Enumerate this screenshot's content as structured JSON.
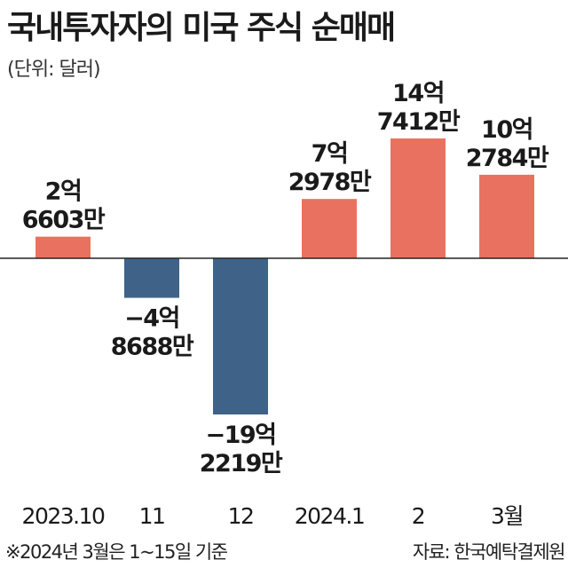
{
  "title": "국내투자자의 미국 주식 순매매",
  "unit_note": "(단위: 달러)",
  "footnote": "※2024년 3월은 1~15일 기준",
  "source": "자료: 한국예탁결제원",
  "colors": {
    "positive": "#e8725f",
    "negative": "#3f6388",
    "axis": "#222222",
    "label": "#1a1a1a"
  },
  "chart_data": {
    "type": "bar",
    "categories": [
      "2023.10",
      "11",
      "12",
      "2024.1",
      "2",
      "3월"
    ],
    "values": [
      266030000,
      -486880000,
      -1922190000,
      729780000,
      1474120000,
      1027840000
    ],
    "data_labels": [
      [
        "2억",
        "6603만"
      ],
      [
        "−4억",
        "8688만"
      ],
      [
        "−19억",
        "2219만"
      ],
      [
        "7억",
        "2978만"
      ],
      [
        "14억",
        "7412만"
      ],
      [
        "10억",
        "2784만"
      ]
    ],
    "title": "국내투자자의 미국 주식 순매매",
    "xlabel": "",
    "ylabel": "",
    "grid": false,
    "legend": "none"
  }
}
